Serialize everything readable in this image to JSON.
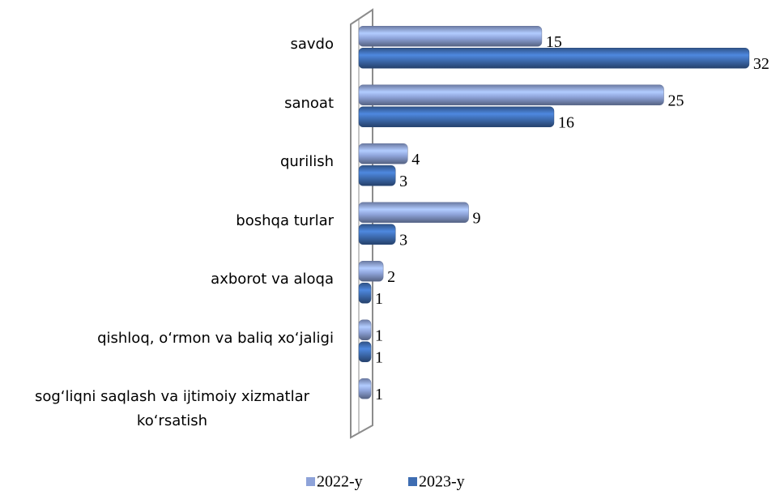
{
  "chart_data": {
    "type": "bar",
    "orientation": "horizontal",
    "categories": [
      "savdo",
      "sanoat",
      "qurilish",
      "boshqa turlar",
      "axborot va aloqa",
      "qishloq, o‘rmon va baliq xo‘jaligi",
      "sog‘liqni saqlash va ijtimoiy xizmatlar ko‘rsatish"
    ],
    "series": [
      {
        "name": "2022-y",
        "color": "#8ea3d9",
        "values": [
          15,
          25,
          4,
          9,
          2,
          1,
          1
        ]
      },
      {
        "name": "2023-y",
        "color": "#3e6db2",
        "values": [
          32,
          16,
          3,
          3,
          1,
          1,
          null
        ]
      }
    ],
    "legend": "bottom"
  }
}
